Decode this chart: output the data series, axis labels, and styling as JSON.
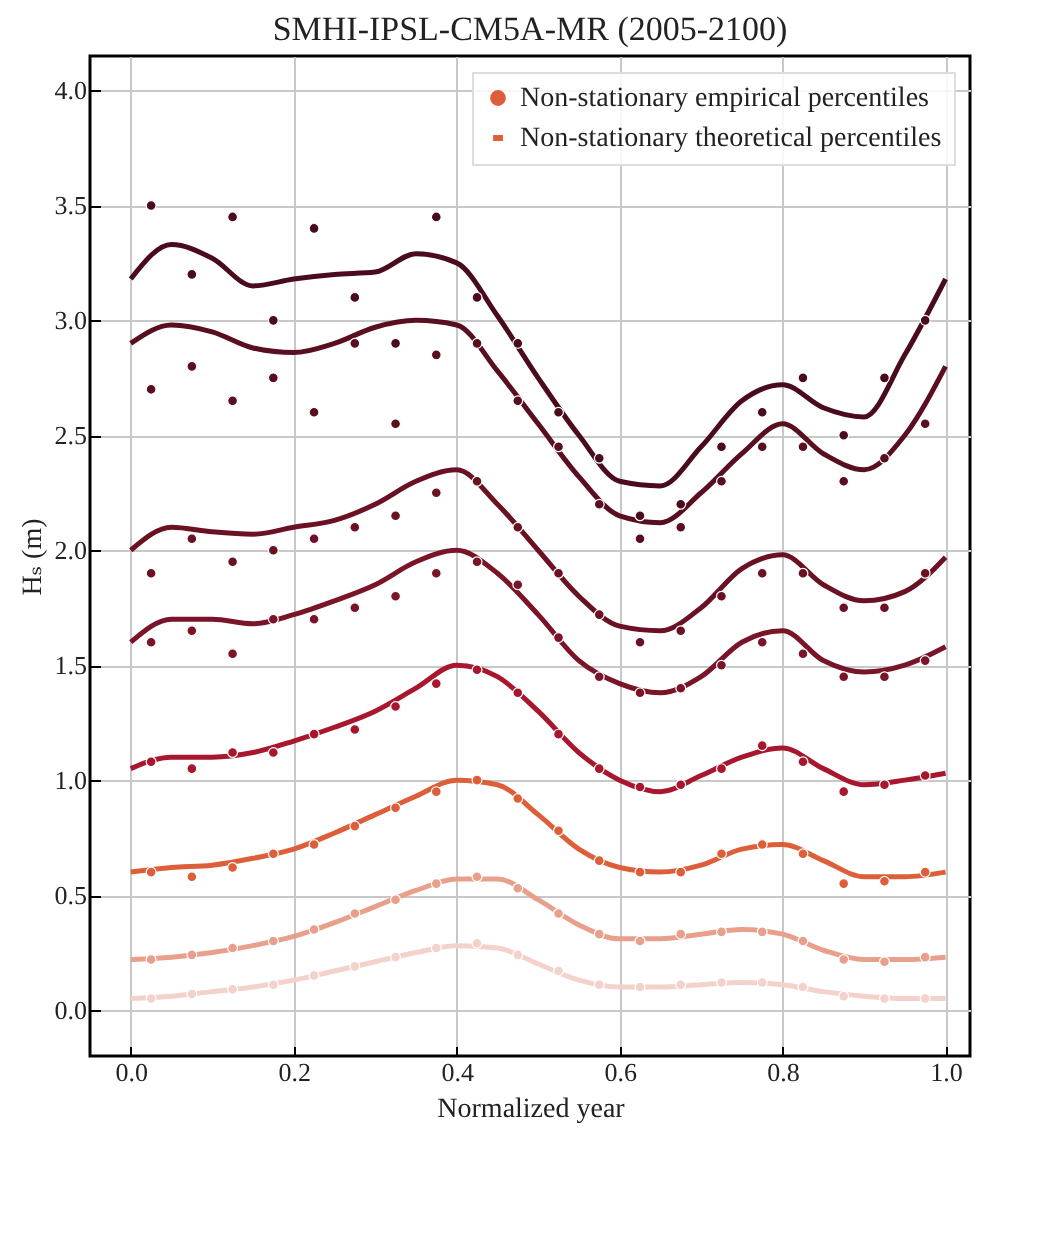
{
  "chart_data": {
    "type": "line",
    "title": "SMHI-IPSL-CM5A-MR (2005-2100)",
    "xlabel": "Normalized year",
    "ylabel": "Hₛ (m)",
    "xlim": [
      -0.05,
      1.03
    ],
    "ylim": [
      -0.2,
      4.15
    ],
    "xticks": [
      {
        "value": 0,
        "label": "0.0"
      },
      0.2,
      0.4,
      0.6,
      0.8,
      {
        "value": 1,
        "label": "1.0"
      }
    ],
    "yticks": [
      {
        "value": 0,
        "label": "0.0"
      },
      0.5,
      {
        "value": 1,
        "label": "1.0"
      },
      1.5,
      {
        "value": 2,
        "label": "2.0"
      },
      2.5,
      {
        "value": 3,
        "label": "3.0"
      },
      3.5,
      {
        "value": 4,
        "label": "4.0"
      }
    ],
    "grid": true,
    "legend": "top right",
    "series": [
      {
        "type": "scatter",
        "color": "#4a0c1c",
        "x": [
          0.025,
          0.075,
          0.125,
          0.175,
          0.225,
          0.275,
          0.325,
          0.375,
          0.425,
          0.475,
          0.525,
          0.575,
          0.625,
          0.675,
          0.725,
          0.775,
          0.825,
          0.875,
          0.925,
          0.975
        ],
        "values": [
          3.5,
          3.2,
          3.45,
          3.0,
          3.4,
          3.1,
          2.9,
          3.45,
          3.1,
          2.9,
          2.6,
          2.4,
          2.15,
          2.2,
          2.45,
          2.6,
          2.75,
          2.5,
          2.75,
          3.0
        ]
      },
      {
        "type": "scatter",
        "color": "#5a0f20",
        "x": [
          0.025,
          0.075,
          0.125,
          0.175,
          0.225,
          0.275,
          0.325,
          0.375,
          0.425,
          0.475,
          0.525,
          0.575,
          0.625,
          0.675,
          0.725,
          0.775,
          0.825,
          0.875,
          0.925,
          0.975
        ],
        "values": [
          2.7,
          2.8,
          2.65,
          2.75,
          2.6,
          2.9,
          2.55,
          2.85,
          2.9,
          2.65,
          2.45,
          2.2,
          2.05,
          2.1,
          2.3,
          2.45,
          2.45,
          2.3,
          2.4,
          2.55
        ]
      },
      {
        "type": "scatter",
        "color": "#6a1224",
        "x": [
          0.025,
          0.075,
          0.125,
          0.175,
          0.225,
          0.275,
          0.325,
          0.375,
          0.425,
          0.475,
          0.525,
          0.575,
          0.625,
          0.675,
          0.725,
          0.775,
          0.825,
          0.875,
          0.925,
          0.975
        ],
        "values": [
          1.9,
          2.05,
          1.95,
          2.0,
          2.05,
          2.1,
          2.15,
          2.25,
          2.3,
          2.1,
          1.9,
          1.72,
          1.6,
          1.65,
          1.8,
          1.9,
          1.9,
          1.75,
          1.75,
          1.9
        ]
      },
      {
        "type": "scatter",
        "color": "#7a1428",
        "x": [
          0.025,
          0.075,
          0.125,
          0.175,
          0.225,
          0.275,
          0.325,
          0.375,
          0.425,
          0.475,
          0.525,
          0.575,
          0.625,
          0.675,
          0.725,
          0.775,
          0.825,
          0.875,
          0.925,
          0.975
        ],
        "values": [
          1.6,
          1.65,
          1.55,
          1.7,
          1.7,
          1.75,
          1.8,
          1.9,
          1.95,
          1.85,
          1.62,
          1.45,
          1.38,
          1.4,
          1.5,
          1.6,
          1.55,
          1.45,
          1.45,
          1.52
        ]
      },
      {
        "type": "scatter",
        "color": "#a8172e",
        "x": [
          0.025,
          0.075,
          0.125,
          0.175,
          0.225,
          0.275,
          0.325,
          0.375,
          0.425,
          0.475,
          0.525,
          0.575,
          0.625,
          0.675,
          0.725,
          0.775,
          0.825,
          0.875,
          0.925,
          0.975
        ],
        "values": [
          1.08,
          1.05,
          1.12,
          1.12,
          1.2,
          1.22,
          1.32,
          1.42,
          1.48,
          1.38,
          1.2,
          1.05,
          0.97,
          0.98,
          1.05,
          1.15,
          1.08,
          0.95,
          0.98,
          1.02
        ]
      },
      {
        "type": "scatter",
        "name": "Non-stationary empirical percentiles",
        "color": "#dc5f3a",
        "x": [
          0.025,
          0.075,
          0.125,
          0.175,
          0.225,
          0.275,
          0.325,
          0.375,
          0.425,
          0.475,
          0.525,
          0.575,
          0.625,
          0.675,
          0.725,
          0.775,
          0.825,
          0.875,
          0.925,
          0.975
        ],
        "values": [
          0.6,
          0.58,
          0.62,
          0.68,
          0.72,
          0.8,
          0.88,
          0.95,
          1.0,
          0.92,
          0.78,
          0.65,
          0.6,
          0.6,
          0.68,
          0.72,
          0.68,
          0.55,
          0.56,
          0.6
        ]
      },
      {
        "type": "scatter",
        "color": "#e8a08c",
        "x": [
          0.025,
          0.075,
          0.125,
          0.175,
          0.225,
          0.275,
          0.325,
          0.375,
          0.425,
          0.475,
          0.525,
          0.575,
          0.625,
          0.675,
          0.725,
          0.775,
          0.825,
          0.875,
          0.925,
          0.975
        ],
        "values": [
          0.22,
          0.24,
          0.27,
          0.3,
          0.35,
          0.42,
          0.48,
          0.55,
          0.58,
          0.53,
          0.42,
          0.33,
          0.3,
          0.33,
          0.34,
          0.34,
          0.3,
          0.22,
          0.21,
          0.23
        ]
      },
      {
        "type": "scatter",
        "color": "#f2d2ca",
        "x": [
          0.025,
          0.075,
          0.125,
          0.175,
          0.225,
          0.275,
          0.325,
          0.375,
          0.425,
          0.475,
          0.525,
          0.575,
          0.625,
          0.675,
          0.725,
          0.775,
          0.825,
          0.875,
          0.925,
          0.975
        ],
        "values": [
          0.05,
          0.07,
          0.09,
          0.11,
          0.15,
          0.19,
          0.23,
          0.27,
          0.29,
          0.24,
          0.17,
          0.11,
          0.1,
          0.11,
          0.12,
          0.12,
          0.1,
          0.06,
          0.05,
          0.05
        ]
      },
      {
        "type": "line",
        "color": "#4a0c1c",
        "x": [
          0,
          0.05,
          0.1,
          0.15,
          0.2,
          0.25,
          0.3,
          0.35,
          0.4,
          0.45,
          0.5,
          0.55,
          0.6,
          0.65,
          0.7,
          0.75,
          0.8,
          0.85,
          0.9,
          0.95,
          1
        ],
        "values": [
          3.18,
          3.33,
          3.27,
          3.15,
          3.18,
          3.2,
          3.21,
          3.29,
          3.25,
          3.02,
          2.75,
          2.5,
          2.3,
          2.28,
          2.45,
          2.65,
          2.72,
          2.62,
          2.58,
          2.85,
          3.18
        ]
      },
      {
        "type": "line",
        "color": "#5a0f20",
        "x": [
          0,
          0.05,
          0.1,
          0.15,
          0.2,
          0.25,
          0.3,
          0.35,
          0.4,
          0.45,
          0.5,
          0.55,
          0.6,
          0.65,
          0.7,
          0.75,
          0.8,
          0.85,
          0.9,
          0.95,
          1
        ],
        "values": [
          2.9,
          2.98,
          2.95,
          2.88,
          2.86,
          2.9,
          2.97,
          3.0,
          2.98,
          2.78,
          2.55,
          2.32,
          2.15,
          2.12,
          2.25,
          2.42,
          2.55,
          2.42,
          2.35,
          2.5,
          2.8
        ]
      },
      {
        "type": "line",
        "color": "#6a1224",
        "x": [
          0,
          0.05,
          0.1,
          0.15,
          0.2,
          0.25,
          0.3,
          0.35,
          0.4,
          0.45,
          0.5,
          0.55,
          0.6,
          0.65,
          0.7,
          0.75,
          0.8,
          0.85,
          0.9,
          0.95,
          1
        ],
        "values": [
          2.0,
          2.1,
          2.08,
          2.07,
          2.1,
          2.13,
          2.2,
          2.3,
          2.35,
          2.2,
          2.0,
          1.8,
          1.67,
          1.65,
          1.75,
          1.92,
          1.98,
          1.85,
          1.78,
          1.82,
          1.97
        ]
      },
      {
        "type": "line",
        "color": "#7a1428",
        "x": [
          0,
          0.05,
          0.1,
          0.15,
          0.2,
          0.25,
          0.3,
          0.35,
          0.4,
          0.45,
          0.5,
          0.55,
          0.6,
          0.65,
          0.7,
          0.75,
          0.8,
          0.85,
          0.9,
          0.95,
          1
        ],
        "values": [
          1.6,
          1.7,
          1.7,
          1.68,
          1.72,
          1.78,
          1.85,
          1.95,
          2.0,
          1.9,
          1.72,
          1.52,
          1.42,
          1.38,
          1.45,
          1.6,
          1.65,
          1.52,
          1.47,
          1.5,
          1.58
        ]
      },
      {
        "type": "line",
        "color": "#a8172e",
        "x": [
          0,
          0.05,
          0.1,
          0.15,
          0.2,
          0.25,
          0.3,
          0.35,
          0.4,
          0.45,
          0.5,
          0.55,
          0.6,
          0.65,
          0.7,
          0.75,
          0.8,
          0.85,
          0.9,
          0.95,
          1
        ],
        "values": [
          1.05,
          1.1,
          1.1,
          1.12,
          1.17,
          1.23,
          1.3,
          1.4,
          1.5,
          1.45,
          1.3,
          1.12,
          1.0,
          0.95,
          1.02,
          1.1,
          1.14,
          1.05,
          0.98,
          1.0,
          1.03
        ]
      },
      {
        "type": "line",
        "name": "Non-stationary theoretical percentiles",
        "color": "#dc5f3a",
        "x": [
          0,
          0.05,
          0.1,
          0.15,
          0.2,
          0.25,
          0.3,
          0.35,
          0.4,
          0.45,
          0.5,
          0.55,
          0.6,
          0.65,
          0.7,
          0.75,
          0.8,
          0.85,
          0.9,
          0.95,
          1
        ],
        "values": [
          0.6,
          0.62,
          0.63,
          0.66,
          0.7,
          0.77,
          0.85,
          0.93,
          1.0,
          0.98,
          0.85,
          0.7,
          0.62,
          0.6,
          0.63,
          0.7,
          0.72,
          0.65,
          0.58,
          0.58,
          0.6
        ]
      },
      {
        "type": "line",
        "color": "#e8a08c",
        "x": [
          0,
          0.05,
          0.1,
          0.15,
          0.2,
          0.25,
          0.3,
          0.35,
          0.4,
          0.45,
          0.5,
          0.55,
          0.6,
          0.65,
          0.7,
          0.75,
          0.8,
          0.85,
          0.9,
          0.95,
          1
        ],
        "values": [
          0.22,
          0.23,
          0.25,
          0.28,
          0.32,
          0.38,
          0.45,
          0.52,
          0.57,
          0.57,
          0.48,
          0.37,
          0.31,
          0.31,
          0.33,
          0.35,
          0.33,
          0.26,
          0.22,
          0.22,
          0.23
        ]
      },
      {
        "type": "line",
        "color": "#f2d2ca",
        "x": [
          0,
          0.05,
          0.1,
          0.15,
          0.2,
          0.25,
          0.3,
          0.35,
          0.4,
          0.45,
          0.5,
          0.55,
          0.6,
          0.65,
          0.7,
          0.75,
          0.8,
          0.85,
          0.9,
          0.95,
          1
        ],
        "values": [
          0.05,
          0.06,
          0.08,
          0.1,
          0.13,
          0.17,
          0.21,
          0.25,
          0.28,
          0.27,
          0.2,
          0.13,
          0.1,
          0.1,
          0.11,
          0.12,
          0.11,
          0.08,
          0.06,
          0.05,
          0.05
        ]
      }
    ]
  }
}
